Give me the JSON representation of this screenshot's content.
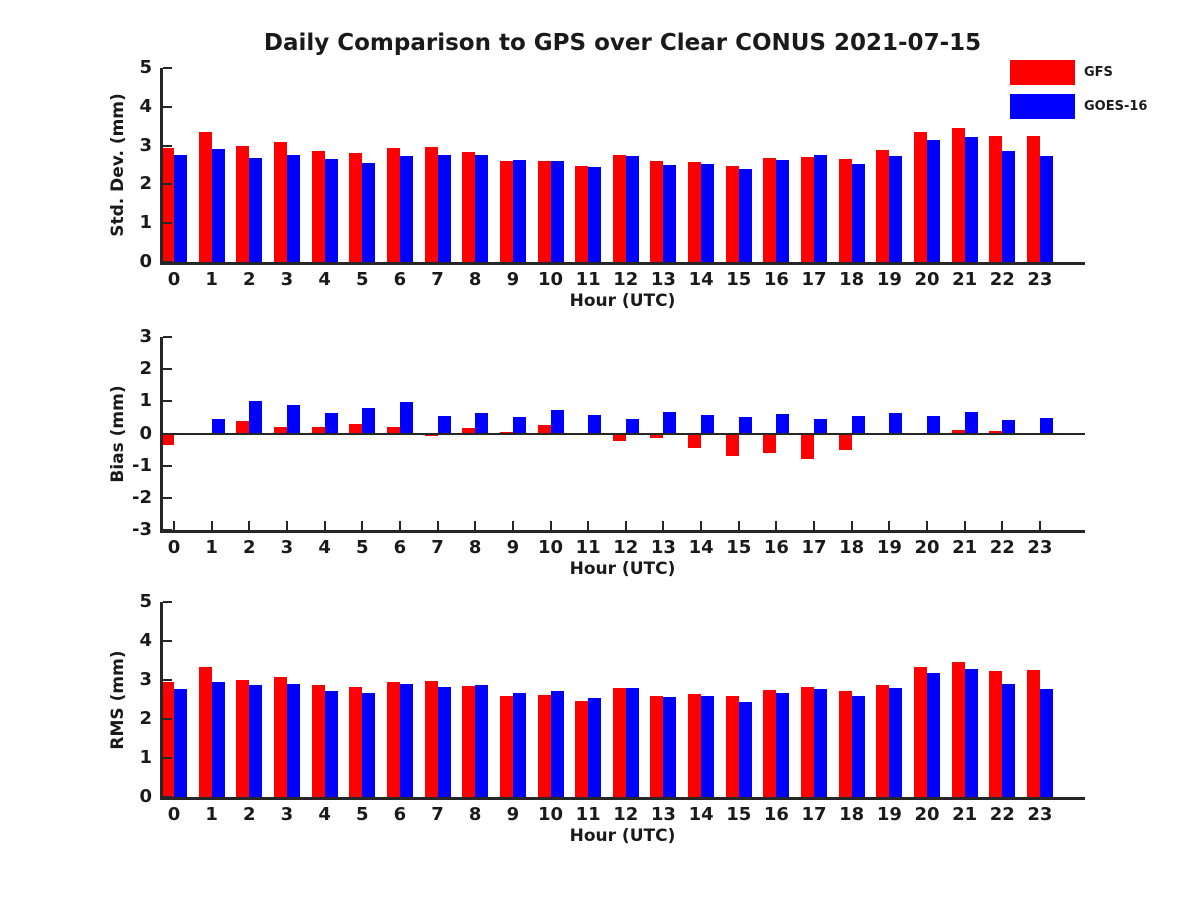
{
  "title": "Daily Comparison to GPS over Clear CONUS 2021-07-15",
  "legend": [
    {
      "label": "GFS",
      "color": "#ff0000"
    },
    {
      "label": "GOES-16",
      "color": "#0000ff"
    }
  ],
  "hours": [
    0,
    1,
    2,
    3,
    4,
    5,
    6,
    7,
    8,
    9,
    10,
    11,
    12,
    13,
    14,
    15,
    16,
    17,
    18,
    19,
    20,
    21,
    22,
    23
  ],
  "chart_data": [
    {
      "type": "bar",
      "ylabel": "Std. Dev. (mm)",
      "xlabel": "Hour (UTC)",
      "ylim": [
        0,
        5
      ],
      "yticks": [
        0,
        1,
        2,
        3,
        4,
        5
      ],
      "categories": [
        0,
        1,
        2,
        3,
        4,
        5,
        6,
        7,
        8,
        9,
        10,
        11,
        12,
        13,
        14,
        15,
        16,
        17,
        18,
        19,
        20,
        21,
        22,
        23
      ],
      "legend_position": "northeast-outside",
      "grid": false,
      "series": [
        {
          "name": "GFS",
          "color": "#ff0000",
          "values": [
            2.93,
            3.35,
            2.98,
            3.08,
            2.86,
            2.81,
            2.95,
            2.97,
            2.83,
            2.6,
            2.6,
            2.47,
            2.77,
            2.6,
            2.57,
            2.47,
            2.67,
            2.7,
            2.65,
            2.89,
            3.36,
            3.46,
            3.24,
            3.26
          ]
        },
        {
          "name": "GOES-16",
          "color": "#0000ff",
          "values": [
            2.75,
            2.91,
            2.67,
            2.75,
            2.65,
            2.55,
            2.74,
            2.77,
            2.75,
            2.63,
            2.6,
            2.46,
            2.74,
            2.51,
            2.53,
            2.4,
            2.62,
            2.76,
            2.52,
            2.73,
            3.14,
            3.23,
            2.87,
            2.72
          ]
        }
      ]
    },
    {
      "type": "bar",
      "ylabel": "Bias (mm)",
      "xlabel": "Hour (UTC)",
      "ylim": [
        -3,
        3
      ],
      "yticks": [
        3,
        2,
        1,
        0,
        -1,
        -2,
        -3
      ],
      "categories": [
        0,
        1,
        2,
        3,
        4,
        5,
        6,
        7,
        8,
        9,
        10,
        11,
        12,
        13,
        14,
        15,
        16,
        17,
        18,
        19,
        20,
        21,
        22,
        23
      ],
      "grid": false,
      "series": [
        {
          "name": "GFS",
          "color": "#ff0000",
          "values": [
            -0.35,
            0.0,
            0.4,
            0.2,
            0.2,
            0.28,
            0.2,
            -0.07,
            0.16,
            0.06,
            0.25,
            0.0,
            -0.22,
            -0.13,
            -0.45,
            -0.7,
            -0.62,
            -0.8,
            -0.52,
            -0.06,
            -0.04,
            0.1,
            0.07,
            -0.04
          ]
        },
        {
          "name": "GOES-16",
          "color": "#0000ff",
          "values": [
            0.0,
            0.45,
            1.02,
            0.9,
            0.65,
            0.78,
            0.97,
            0.54,
            0.65,
            0.51,
            0.74,
            0.57,
            0.45,
            0.68,
            0.58,
            0.52,
            0.6,
            0.45,
            0.55,
            0.63,
            0.55,
            0.68,
            0.42,
            0.48
          ]
        }
      ]
    },
    {
      "type": "bar",
      "ylabel": "RMS (mm)",
      "xlabel": "Hour (UTC)",
      "ylim": [
        0,
        5
      ],
      "yticks": [
        0,
        1,
        2,
        3,
        4,
        5
      ],
      "categories": [
        0,
        1,
        2,
        3,
        4,
        5,
        6,
        7,
        8,
        9,
        10,
        11,
        12,
        13,
        14,
        15,
        16,
        17,
        18,
        19,
        20,
        21,
        22,
        23
      ],
      "grid": false,
      "series": [
        {
          "name": "GFS",
          "color": "#ff0000",
          "values": [
            2.95,
            3.33,
            3.0,
            3.07,
            2.88,
            2.83,
            2.96,
            2.98,
            2.85,
            2.6,
            2.62,
            2.46,
            2.8,
            2.6,
            2.64,
            2.58,
            2.75,
            2.81,
            2.72,
            2.88,
            3.33,
            3.45,
            3.23,
            3.26
          ]
        },
        {
          "name": "GOES-16",
          "color": "#0000ff",
          "values": [
            2.77,
            2.94,
            2.86,
            2.9,
            2.73,
            2.66,
            2.89,
            2.82,
            2.86,
            2.66,
            2.71,
            2.53,
            2.79,
            2.57,
            2.59,
            2.43,
            2.67,
            2.78,
            2.58,
            2.79,
            3.17,
            3.27,
            2.9,
            2.76
          ]
        }
      ]
    }
  ]
}
